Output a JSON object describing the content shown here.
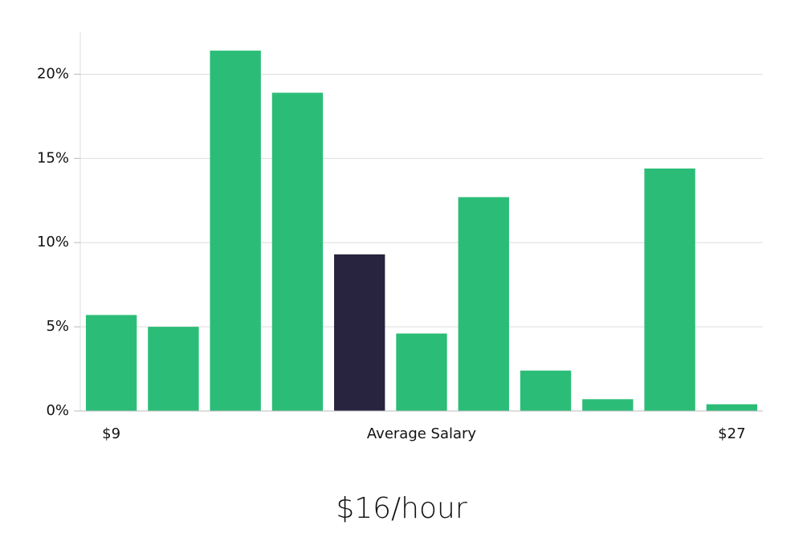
{
  "chart_data": {
    "type": "bar",
    "subtitle": "$16/hour",
    "categories": [
      "$9",
      null,
      null,
      null,
      null,
      "Average Salary",
      null,
      null,
      null,
      null,
      "$27"
    ],
    "values": [
      5.7,
      5.0,
      21.4,
      18.9,
      9.3,
      4.6,
      12.7,
      2.4,
      0.7,
      14.4,
      0.4
    ],
    "colors": [
      "#2bbd77",
      "#2bbd77",
      "#2bbd77",
      "#2bbd77",
      "#28243f",
      "#2bbd77",
      "#2bbd77",
      "#2bbd77",
      "#2bbd77",
      "#2bbd77",
      "#2bbd77"
    ],
    "ylim": [
      0,
      22.5
    ],
    "yticks": [
      {
        "value": 0,
        "label": "0%"
      },
      {
        "value": 5,
        "label": "5%"
      },
      {
        "value": 10,
        "label": "10%"
      },
      {
        "value": 15,
        "label": "15%"
      },
      {
        "value": 20,
        "label": "20%"
      }
    ],
    "grid": true
  }
}
